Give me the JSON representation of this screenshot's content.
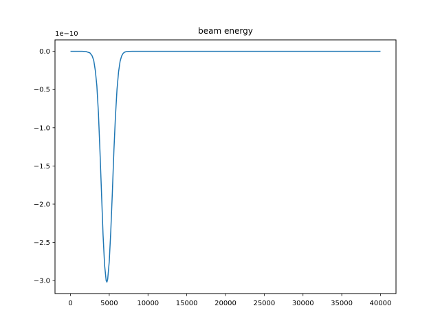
{
  "chart_data": {
    "type": "line",
    "title": "beam energy",
    "xlabel": "",
    "ylabel": "",
    "y_offset_label": "1e−10",
    "xlim": [
      -2000,
      42000
    ],
    "ylim": [
      -3.17,
      0.15
    ],
    "grid": false,
    "x_ticks": [
      0,
      5000,
      10000,
      15000,
      20000,
      25000,
      30000,
      35000,
      40000
    ],
    "x_tick_labels": [
      "0",
      "5000",
      "10000",
      "15000",
      "20000",
      "25000",
      "30000",
      "35000",
      "40000"
    ],
    "y_ticks": [
      0.0,
      -0.5,
      -1.0,
      -1.5,
      -2.0,
      -2.5,
      -3.0
    ],
    "y_tick_labels": [
      "0.0",
      "−0.5",
      "−1.0",
      "−1.5",
      "−2.0",
      "−2.5",
      "−3.0"
    ],
    "series": [
      {
        "color": "#1f77b4",
        "x": [
          0,
          500,
          1000,
          1500,
          2000,
          2500,
          2800,
          3000,
          3200,
          3400,
          3600,
          3800,
          4000,
          4200,
          4400,
          4600,
          4700,
          4800,
          5000,
          5200,
          5400,
          5600,
          5800,
          6000,
          6200,
          6400,
          6600,
          6800,
          7000,
          7200,
          7500,
          8000,
          9000,
          10000,
          15000,
          20000,
          25000,
          30000,
          35000,
          40000
        ],
        "y": [
          0.0,
          0.0,
          0.0,
          0.0,
          -0.003,
          -0.02,
          -0.06,
          -0.12,
          -0.25,
          -0.45,
          -0.8,
          -1.3,
          -1.85,
          -2.4,
          -2.8,
          -3.0,
          -3.02,
          -2.98,
          -2.75,
          -2.35,
          -1.85,
          -1.3,
          -0.85,
          -0.5,
          -0.27,
          -0.13,
          -0.06,
          -0.025,
          -0.01,
          -0.004,
          -0.001,
          0.0,
          0.0,
          0.0,
          0.0,
          0.0,
          0.0,
          0.0,
          0.0,
          0.0
        ]
      }
    ]
  }
}
